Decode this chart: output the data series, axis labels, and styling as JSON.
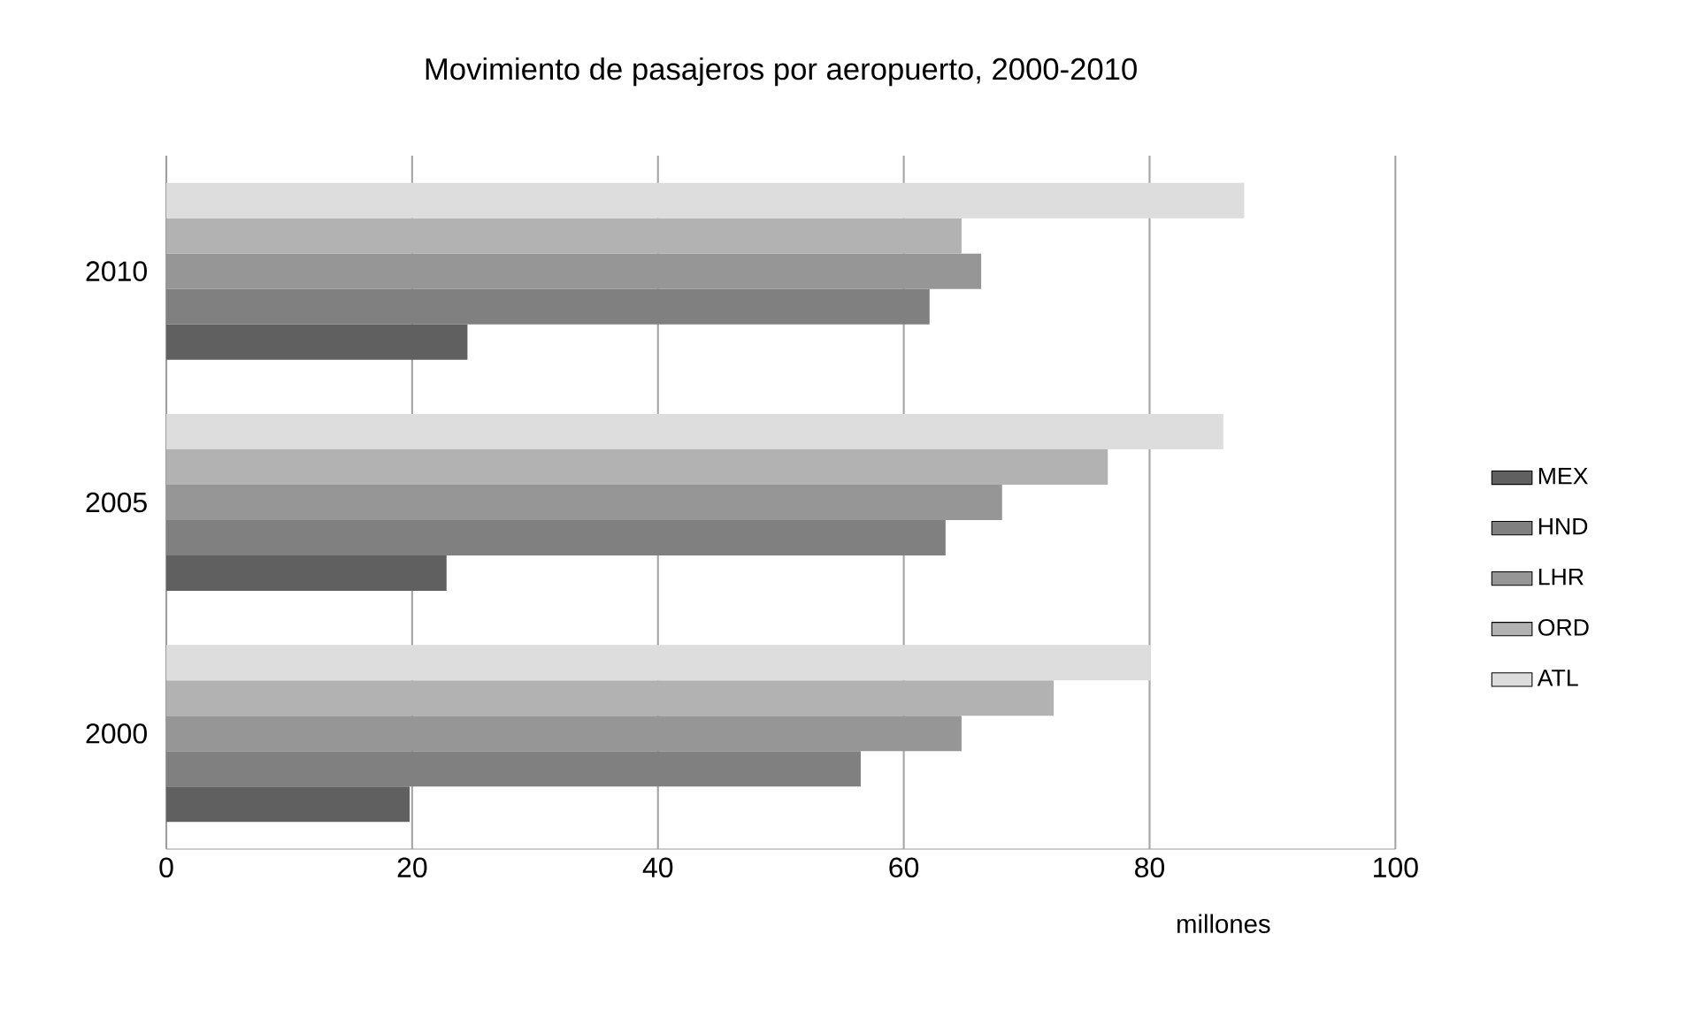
{
  "chart_data": {
    "type": "bar",
    "orientation": "horizontal",
    "title": "Movimiento de pasajeros por aeropuerto, 2000-2010",
    "xlabel": "millones",
    "categories": [
      "2010",
      "2005",
      "2000"
    ],
    "series": [
      {
        "name": "MEX",
        "color": "#606060",
        "values": [
          24.5,
          22.8,
          19.8
        ]
      },
      {
        "name": "HND",
        "color": "#808080",
        "values": [
          62.1,
          63.4,
          56.5
        ]
      },
      {
        "name": "LHR",
        "color": "#969696",
        "values": [
          66.3,
          68.0,
          64.7
        ]
      },
      {
        "name": "ORD",
        "color": "#b2b2b2",
        "values": [
          64.7,
          76.6,
          72.2
        ]
      },
      {
        "name": "ATL",
        "color": "#dddddd",
        "values": [
          87.7,
          86.0,
          80.1
        ]
      }
    ],
    "xlim": [
      0,
      100
    ],
    "xticks": [
      0,
      20,
      40,
      60,
      80,
      100
    ],
    "grid": "x",
    "legend": "right"
  }
}
